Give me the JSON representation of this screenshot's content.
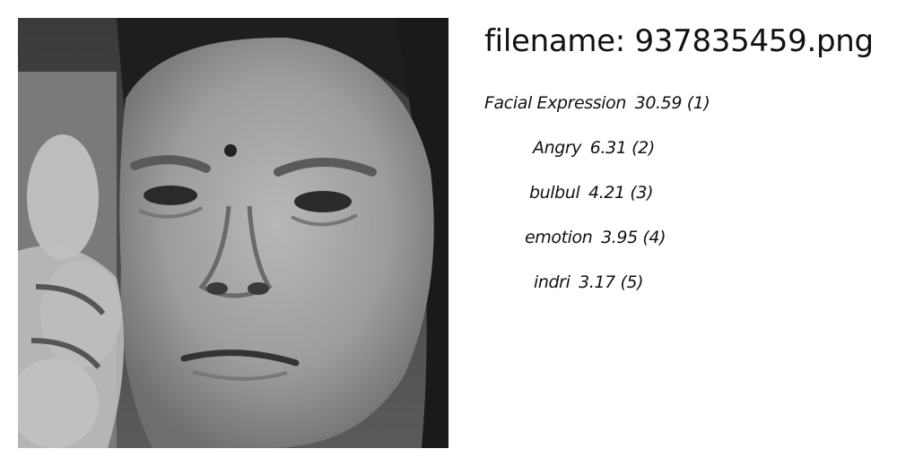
{
  "image": {
    "description_icon": "grayscale-face-photo"
  },
  "filename_label": "filename: 937835459.png",
  "predictions": [
    {
      "label": "Facial Expression",
      "score": "30.59",
      "rank": "(1)"
    },
    {
      "label": "Angry ",
      "score": "6.31",
      "rank": "(2)"
    },
    {
      "label": "bulbul ",
      "score": "4.21",
      "rank": "(3)"
    },
    {
      "label": "emotion ",
      "score": "3.95",
      "rank": "(4)"
    },
    {
      "label": "indri ",
      "score": "3.17",
      "rank": "(5)"
    }
  ]
}
